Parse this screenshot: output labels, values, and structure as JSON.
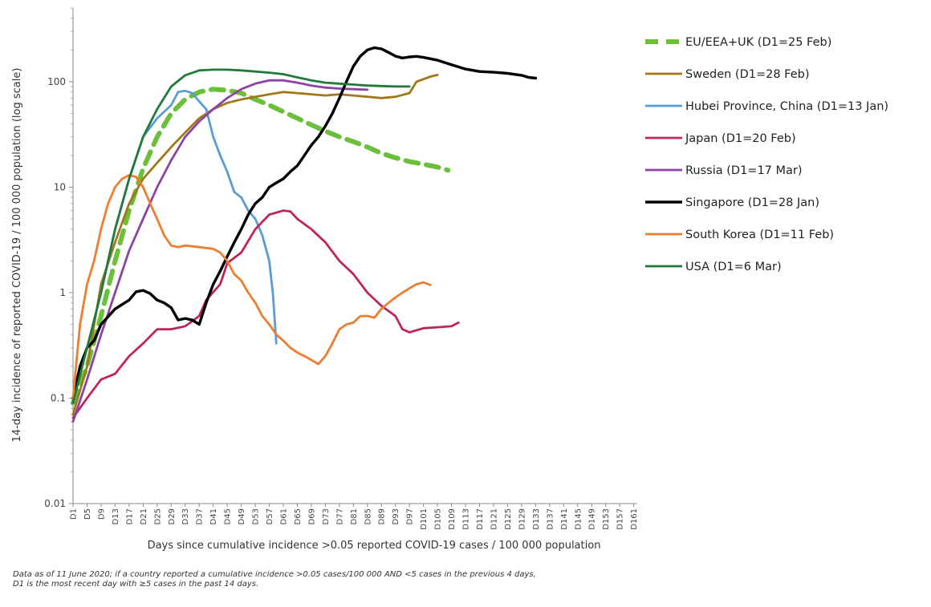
{
  "chart_data": {
    "type": "line",
    "title": "",
    "xlabel": "Days since cumulative incidence >0.05 reported COVID-19 cases / 100 000 population",
    "ylabel": "14-day incidence of reported COVID-19 / 100 000 population (log scale)",
    "yscale": "log",
    "ylim": [
      0.01,
      500
    ],
    "xlim": [
      1,
      162
    ],
    "y_ticks": [
      "0.01",
      "0.1",
      "1",
      "10",
      "100"
    ],
    "x_ticks": [
      "D1",
      "D5",
      "D9",
      "D13",
      "D17",
      "D21",
      "D25",
      "D29",
      "D33",
      "D37",
      "D41",
      "D45",
      "D49",
      "D53",
      "D57",
      "D61",
      "D65",
      "D69",
      "D73",
      "D77",
      "D81",
      "D85",
      "D89",
      "D93",
      "D97",
      "D101",
      "D105",
      "D109",
      "D113",
      "D117",
      "D121",
      "D125",
      "D129",
      "D133",
      "D137",
      "D141",
      "D145",
      "D149",
      "D153",
      "D157",
      "D161"
    ],
    "legend_position": "right",
    "grid": false,
    "series": [
      {
        "name": "EU/EEA+UK  (D1=25 Feb)",
        "color": "#6bbf3a",
        "dashed": true,
        "width": 6,
        "points": [
          [
            1,
            0.09
          ],
          [
            5,
            0.2
          ],
          [
            9,
            0.6
          ],
          [
            13,
            2
          ],
          [
            17,
            6
          ],
          [
            21,
            15
          ],
          [
            25,
            30
          ],
          [
            29,
            50
          ],
          [
            33,
            68
          ],
          [
            37,
            80
          ],
          [
            41,
            85
          ],
          [
            45,
            83
          ],
          [
            49,
            78
          ],
          [
            53,
            68
          ],
          [
            57,
            60
          ],
          [
            61,
            52
          ],
          [
            65,
            45
          ],
          [
            69,
            39
          ],
          [
            73,
            34
          ],
          [
            77,
            30
          ],
          [
            81,
            27
          ],
          [
            85,
            24
          ],
          [
            89,
            21
          ],
          [
            93,
            19
          ],
          [
            97,
            17.5
          ],
          [
            101,
            16.5
          ],
          [
            105,
            15.5
          ],
          [
            108,
            14.5
          ]
        ]
      },
      {
        "name": "Sweden  (D1=28 Feb)",
        "color": "#a07818",
        "dashed": false,
        "width": 2.8,
        "points": [
          [
            1,
            0.07
          ],
          [
            5,
            0.2
          ],
          [
            9,
            1.2
          ],
          [
            13,
            3
          ],
          [
            17,
            7
          ],
          [
            21,
            12
          ],
          [
            25,
            17
          ],
          [
            29,
            24
          ],
          [
            33,
            33
          ],
          [
            37,
            45
          ],
          [
            41,
            55
          ],
          [
            45,
            63
          ],
          [
            49,
            68
          ],
          [
            53,
            72
          ],
          [
            57,
            76
          ],
          [
            61,
            80
          ],
          [
            65,
            78
          ],
          [
            69,
            76
          ],
          [
            73,
            74
          ],
          [
            77,
            76
          ],
          [
            81,
            74
          ],
          [
            85,
            72
          ],
          [
            89,
            70
          ],
          [
            93,
            72
          ],
          [
            97,
            78
          ],
          [
            99,
            100
          ],
          [
            103,
            112
          ],
          [
            105,
            116
          ]
        ]
      },
      {
        "name": "Hubei Province, China  (D1=13 Jan)",
        "color": "#5b9bd5",
        "dashed": false,
        "width": 2.8,
        "points": [
          [
            1,
            0.1
          ],
          [
            5,
            0.3
          ],
          [
            9,
            1
          ],
          [
            13,
            4
          ],
          [
            17,
            12
          ],
          [
            21,
            30
          ],
          [
            25,
            45
          ],
          [
            29,
            60
          ],
          [
            31,
            80
          ],
          [
            33,
            82
          ],
          [
            35,
            78
          ],
          [
            37,
            65
          ],
          [
            39,
            55
          ],
          [
            41,
            30
          ],
          [
            43,
            20
          ],
          [
            45,
            14
          ],
          [
            47,
            9
          ],
          [
            49,
            8
          ],
          [
            51,
            6
          ],
          [
            53,
            5
          ],
          [
            55,
            3.5
          ],
          [
            57,
            2
          ],
          [
            58,
            1
          ],
          [
            59,
            0.33
          ]
        ]
      },
      {
        "name": "Japan  (D1=20 Feb)",
        "color": "#c0245c",
        "dashed": false,
        "width": 2.8,
        "points": [
          [
            1,
            0.065
          ],
          [
            5,
            0.1
          ],
          [
            9,
            0.15
          ],
          [
            13,
            0.17
          ],
          [
            17,
            0.25
          ],
          [
            21,
            0.33
          ],
          [
            25,
            0.45
          ],
          [
            29,
            0.45
          ],
          [
            33,
            0.48
          ],
          [
            37,
            0.6
          ],
          [
            39,
            0.85
          ],
          [
            43,
            1.2
          ],
          [
            45,
            1.9
          ],
          [
            49,
            2.4
          ],
          [
            53,
            4
          ],
          [
            57,
            5.5
          ],
          [
            61,
            6
          ],
          [
            63,
            5.9
          ],
          [
            65,
            5
          ],
          [
            69,
            4
          ],
          [
            73,
            3
          ],
          [
            77,
            2
          ],
          [
            81,
            1.5
          ],
          [
            85,
            1
          ],
          [
            89,
            0.75
          ],
          [
            93,
            0.6
          ],
          [
            95,
            0.45
          ],
          [
            97,
            0.42
          ],
          [
            101,
            0.46
          ],
          [
            105,
            0.47
          ],
          [
            109,
            0.48
          ],
          [
            111,
            0.52
          ]
        ]
      },
      {
        "name": "Russia  (D1=17 Mar)",
        "color": "#8c44a4",
        "dashed": false,
        "width": 2.8,
        "points": [
          [
            1,
            0.06
          ],
          [
            5,
            0.15
          ],
          [
            9,
            0.4
          ],
          [
            13,
            1
          ],
          [
            17,
            2.5
          ],
          [
            21,
            5
          ],
          [
            25,
            10
          ],
          [
            29,
            18
          ],
          [
            33,
            30
          ],
          [
            37,
            42
          ],
          [
            41,
            55
          ],
          [
            45,
            70
          ],
          [
            49,
            85
          ],
          [
            53,
            96
          ],
          [
            57,
            103
          ],
          [
            61,
            103
          ],
          [
            65,
            98
          ],
          [
            69,
            92
          ],
          [
            73,
            88
          ],
          [
            77,
            86
          ],
          [
            81,
            85
          ],
          [
            85,
            84
          ]
        ]
      },
      {
        "name": "Singapore  (D1=28 Jan)",
        "color": "#000000",
        "dashed": false,
        "width": 3.4,
        "points": [
          [
            1,
            0.1
          ],
          [
            3,
            0.2
          ],
          [
            5,
            0.3
          ],
          [
            7,
            0.35
          ],
          [
            9,
            0.5
          ],
          [
            13,
            0.7
          ],
          [
            17,
            0.85
          ],
          [
            19,
            1.02
          ],
          [
            21,
            1.05
          ],
          [
            23,
            0.98
          ],
          [
            25,
            0.85
          ],
          [
            27,
            0.8
          ],
          [
            29,
            0.72
          ],
          [
            31,
            0.55
          ],
          [
            33,
            0.57
          ],
          [
            35,
            0.55
          ],
          [
            37,
            0.5
          ],
          [
            39,
            0.8
          ],
          [
            41,
            1.2
          ],
          [
            43,
            1.6
          ],
          [
            45,
            2.2
          ],
          [
            47,
            3
          ],
          [
            49,
            4
          ],
          [
            51,
            5.5
          ],
          [
            53,
            7
          ],
          [
            55,
            8
          ],
          [
            57,
            10
          ],
          [
            59,
            11
          ],
          [
            61,
            12
          ],
          [
            63,
            14
          ],
          [
            65,
            16
          ],
          [
            67,
            20
          ],
          [
            69,
            25
          ],
          [
            71,
            30
          ],
          [
            73,
            38
          ],
          [
            75,
            50
          ],
          [
            77,
            70
          ],
          [
            79,
            100
          ],
          [
            81,
            140
          ],
          [
            83,
            175
          ],
          [
            85,
            200
          ],
          [
            87,
            210
          ],
          [
            89,
            205
          ],
          [
            91,
            190
          ],
          [
            93,
            175
          ],
          [
            95,
            168
          ],
          [
            97,
            172
          ],
          [
            99,
            174
          ],
          [
            101,
            170
          ],
          [
            105,
            160
          ],
          [
            109,
            145
          ],
          [
            113,
            132
          ],
          [
            117,
            125
          ],
          [
            121,
            123
          ],
          [
            125,
            120
          ],
          [
            129,
            115
          ],
          [
            131,
            110
          ],
          [
            133,
            108
          ]
        ]
      },
      {
        "name": "South Korea  (D1=11 Feb)",
        "color": "#ed7d31",
        "dashed": false,
        "width": 2.8,
        "points": [
          [
            1,
            0.1
          ],
          [
            3,
            0.5
          ],
          [
            5,
            1.2
          ],
          [
            7,
            2
          ],
          [
            9,
            4
          ],
          [
            11,
            7
          ],
          [
            13,
            10
          ],
          [
            15,
            12
          ],
          [
            17,
            13
          ],
          [
            19,
            12.5
          ],
          [
            21,
            10
          ],
          [
            23,
            7
          ],
          [
            25,
            5
          ],
          [
            27,
            3.5
          ],
          [
            29,
            2.8
          ],
          [
            31,
            2.7
          ],
          [
            33,
            2.8
          ],
          [
            35,
            2.75
          ],
          [
            37,
            2.7
          ],
          [
            39,
            2.65
          ],
          [
            41,
            2.6
          ],
          [
            43,
            2.4
          ],
          [
            45,
            2
          ],
          [
            47,
            1.5
          ],
          [
            49,
            1.3
          ],
          [
            51,
            1
          ],
          [
            53,
            0.8
          ],
          [
            55,
            0.6
          ],
          [
            57,
            0.5
          ],
          [
            59,
            0.4
          ],
          [
            61,
            0.35
          ],
          [
            63,
            0.3
          ],
          [
            65,
            0.27
          ],
          [
            67,
            0.25
          ],
          [
            69,
            0.23
          ],
          [
            71,
            0.21
          ],
          [
            73,
            0.25
          ],
          [
            75,
            0.33
          ],
          [
            77,
            0.45
          ],
          [
            79,
            0.5
          ],
          [
            81,
            0.52
          ],
          [
            83,
            0.6
          ],
          [
            85,
            0.6
          ],
          [
            87,
            0.58
          ],
          [
            89,
            0.7
          ],
          [
            91,
            0.8
          ],
          [
            93,
            0.9
          ],
          [
            95,
            1
          ],
          [
            97,
            1.1
          ],
          [
            99,
            1.2
          ],
          [
            101,
            1.25
          ],
          [
            103,
            1.18
          ]
        ]
      },
      {
        "name": "USA  (D1=6 Mar)",
        "color": "#217a3a",
        "dashed": false,
        "width": 2.8,
        "points": [
          [
            1,
            0.09
          ],
          [
            5,
            0.3
          ],
          [
            9,
            1
          ],
          [
            13,
            4
          ],
          [
            17,
            12
          ],
          [
            21,
            30
          ],
          [
            25,
            55
          ],
          [
            29,
            90
          ],
          [
            33,
            115
          ],
          [
            37,
            128
          ],
          [
            41,
            130
          ],
          [
            45,
            130
          ],
          [
            49,
            128
          ],
          [
            53,
            125
          ],
          [
            57,
            122
          ],
          [
            61,
            118
          ],
          [
            65,
            110
          ],
          [
            69,
            103
          ],
          [
            73,
            98
          ],
          [
            77,
            96
          ],
          [
            81,
            94
          ],
          [
            85,
            92
          ],
          [
            89,
            91
          ],
          [
            93,
            90
          ],
          [
            97,
            90
          ]
        ]
      }
    ]
  },
  "footnote": {
    "line1": "Data as of 11 June 2020; if a country reported a cumulative incidence >0.05 cases/100 000 AND <5 cases in the previous 4 days,",
    "line2": "D1 is the most recent day with ≥5 cases in the past 14 days."
  }
}
